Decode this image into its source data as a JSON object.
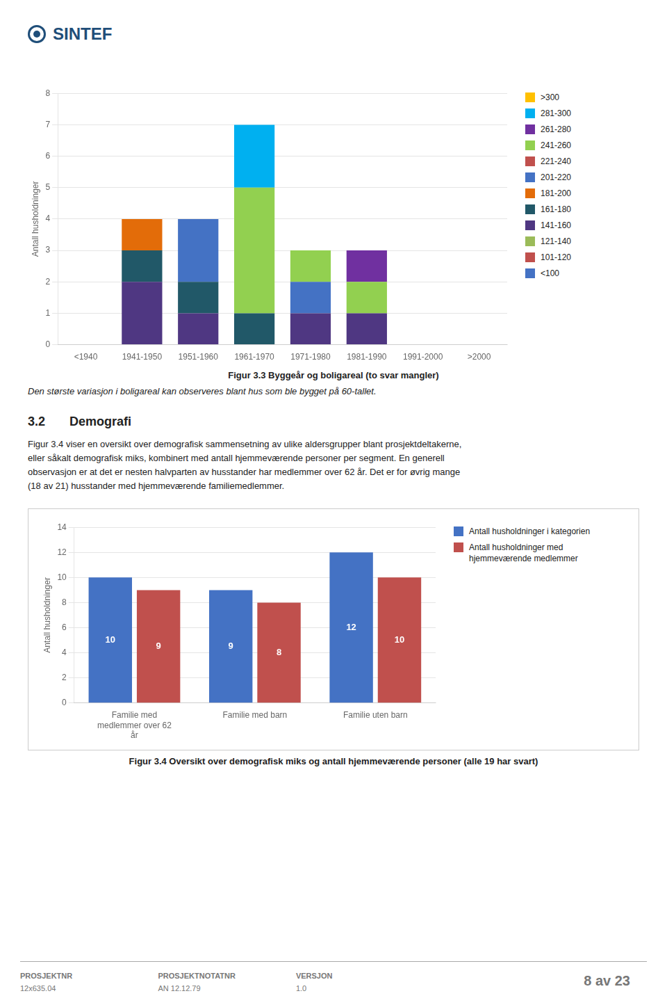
{
  "page_title": "SINTEF",
  "section_num": "3.2",
  "section_title": "Demografi",
  "paragraph_lines": [
    "Figur 3.4 viser en oversikt over demografisk sammensetning av ulike aldersgrupper blant prosjektdeltakerne,",
    "eller såkalt demografisk miks, kombinert med antall hjemmeværende personer per segment. En generell",
    "observasjon er at det er nesten halvparten av husstander har medlemmer over 62 år. Det er for øvrig mange",
    "(18 av 21) husstander med hjemmeværende familiemedlemmer."
  ],
  "footer_columns": [
    {
      "title": "PROSJEKTNR",
      "text": "12x635.04"
    },
    {
      "title": "PROSJEKTNOTATNR",
      "text": "AN 12.12.79"
    },
    {
      "title": "VERSJON",
      "text": "1.0"
    }
  ],
  "footer_page": "8 av 23",
  "chart_data": [
    {
      "type": "bar",
      "title": "Figur 3.3 Byggeår og boligareal (to svar mangler)",
      "subtitle": "Den største variasjon i boligareal kan observeres blant hus som ble bygget på 60-tallet.",
      "ylabel": "Antall husholdninger",
      "categories": [
        "<1940",
        "1941-1950",
        "1951-1960",
        "1961-1970",
        "1971-1980",
        "1981-1990",
        "1991-2000",
        ">2000"
      ],
      "series": [
        {
          "name": ">300",
          "color": "#FFC000",
          "values": [
            0,
            0,
            0,
            0,
            0,
            0,
            0,
            0
          ]
        },
        {
          "name": "281-300",
          "color": "#00B0F0",
          "values": [
            0,
            0,
            0,
            2,
            0,
            0,
            0,
            0
          ]
        },
        {
          "name": "261-280",
          "color": "#7030A0",
          "values": [
            0,
            0,
            0,
            0,
            0,
            1,
            0,
            0
          ]
        },
        {
          "name": "241-260",
          "color": "#92D050",
          "values": [
            0,
            0,
            0,
            4,
            1,
            1,
            0,
            0
          ]
        },
        {
          "name": "221-240",
          "color": "#C0504D",
          "values": [
            0,
            0,
            0,
            0,
            0,
            0,
            0,
            0
          ]
        },
        {
          "name": "201-220",
          "color": "#4472C4",
          "values": [
            0,
            0,
            2,
            0,
            1,
            0,
            0,
            0
          ]
        },
        {
          "name": "181-200",
          "color": "#E36C09",
          "values": [
            0,
            1,
            0,
            0,
            0,
            0,
            0,
            0
          ]
        },
        {
          "name": "161-180",
          "color": "#215868",
          "values": [
            0,
            1,
            1,
            1,
            0,
            0,
            0,
            0
          ]
        },
        {
          "name": "141-160",
          "color": "#4F3782",
          "values": [
            0,
            2,
            1,
            0,
            1,
            1,
            0,
            0
          ]
        },
        {
          "name": "121-140",
          "color": "#9BBB59",
          "values": [
            0,
            0,
            0,
            0,
            0,
            0,
            0,
            0
          ]
        },
        {
          "name": "101-120",
          "color": "#C0504D",
          "values": [
            0,
            0,
            0,
            0,
            0,
            0,
            0,
            0
          ]
        },
        {
          "name": "<100",
          "color": "#4472C4",
          "values": [
            0,
            0,
            0,
            0,
            0,
            0,
            0,
            0
          ]
        }
      ],
      "stacked": true,
      "ylim": [
        0,
        8
      ],
      "yticks": [
        0,
        1,
        2,
        3,
        4,
        5,
        6,
        7,
        8
      ],
      "grid": true,
      "legend": "right"
    },
    {
      "type": "bar",
      "title": "Figur 3.4 Oversikt over demografisk miks og antall hjemmeværende personer (alle 19 har svart)",
      "ylabel": "Antall husholdninger",
      "categories": [
        "Familie med\nmedlemmer over 62\når",
        "Familie med barn",
        "Familie uten barn"
      ],
      "series": [
        {
          "name": "Antall husholdninger i kategorien",
          "color": "#4472C4",
          "values": [
            10,
            9,
            12
          ]
        },
        {
          "name": "Antall husholdninger med\nhjemmeværende medlemmer",
          "color": "#C0504D",
          "values": [
            9,
            8,
            10
          ]
        }
      ],
      "ylim": [
        0,
        14
      ],
      "yticks": [
        0,
        2,
        4,
        6,
        8,
        10,
        12,
        14
      ],
      "grid": true,
      "legend": "right",
      "data_labels": true
    }
  ]
}
